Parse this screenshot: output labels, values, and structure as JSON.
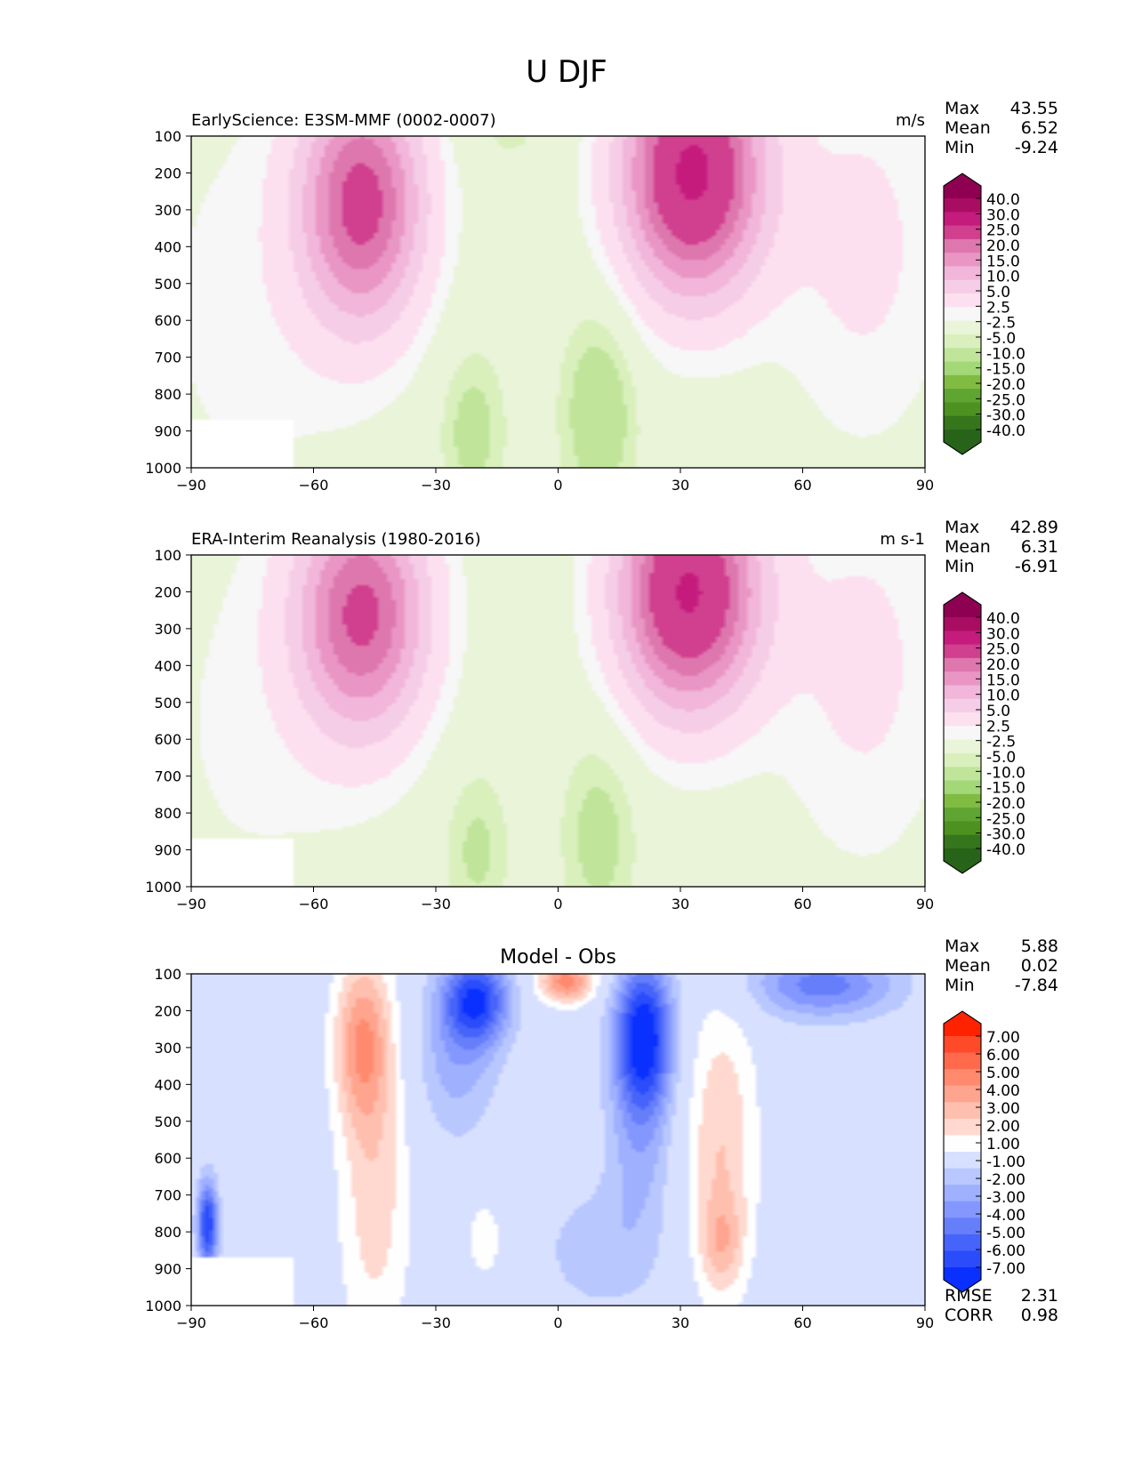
{
  "figure_title": "U DJF",
  "chart_data": [
    {
      "type": "heatmap",
      "title": "EarlyScience: E3SM-MMF (0002-0007)",
      "units": "m/s",
      "stats": [
        {
          "label": "Max",
          "value": "43.55"
        },
        {
          "label": "Mean",
          "value": "6.52"
        },
        {
          "label": "Min",
          "value": "-9.24"
        }
      ],
      "xlim": [
        -90,
        90
      ],
      "ylim": [
        1000,
        100
      ],
      "x_ticks": [
        "−90",
        "−60",
        "−30",
        "0",
        "30",
        "60",
        "90"
      ],
      "y_ticks": [
        "100",
        "200",
        "300",
        "400",
        "500",
        "600",
        "700",
        "800",
        "900",
        "1000"
      ],
      "colorbar": {
        "labels": [
          "40.0",
          "30.0",
          "25.0",
          "20.0",
          "15.0",
          "10.0",
          "5.0",
          "2.5",
          "-2.5",
          "-5.0",
          "-10.0",
          "-15.0",
          "-20.0",
          "-25.0",
          "-30.0",
          "-40.0"
        ],
        "colors": [
          "#8e0152",
          "#a80d61",
          "#c51b7d",
          "#d13f8f",
          "#de77ae",
          "#e996c4",
          "#f1b6da",
          "#f6cde7",
          "#fde0ef",
          "#f7f7f7",
          "#eaf4d9",
          "#d9f0bd",
          "#c0e59a",
          "#a3d877",
          "#7fbc41",
          "#5fa532",
          "#4d9221",
          "#35751c",
          "#276419"
        ]
      },
      "features": [
        {
          "lat": -48,
          "p": 280,
          "value": 32
        },
        {
          "lat": 33,
          "p": 200,
          "value": 43
        },
        {
          "lat": 10,
          "p": 850,
          "value": -9
        }
      ]
    },
    {
      "type": "heatmap",
      "title": "ERA-Interim Reanalysis (1980-2016)",
      "units": "m s-1",
      "stats": [
        {
          "label": "Max",
          "value": "42.89"
        },
        {
          "label": "Mean",
          "value": "6.31"
        },
        {
          "label": "Min",
          "value": "-6.91"
        }
      ],
      "xlim": [
        -90,
        90
      ],
      "ylim": [
        1000,
        100
      ],
      "x_ticks": [
        "−90",
        "−60",
        "−30",
        "0",
        "30",
        "60",
        "90"
      ],
      "y_ticks": [
        "100",
        "200",
        "300",
        "400",
        "500",
        "600",
        "700",
        "800",
        "900",
        "1000"
      ],
      "colorbar": {
        "labels": [
          "40.0",
          "30.0",
          "25.0",
          "20.0",
          "15.0",
          "10.0",
          "5.0",
          "2.5",
          "-2.5",
          "-5.0",
          "-10.0",
          "-15.0",
          "-20.0",
          "-25.0",
          "-30.0",
          "-40.0"
        ],
        "colors": [
          "#8e0152",
          "#a80d61",
          "#c51b7d",
          "#d13f8f",
          "#de77ae",
          "#e996c4",
          "#f1b6da",
          "#f6cde7",
          "#fde0ef",
          "#f7f7f7",
          "#eaf4d9",
          "#d9f0bd",
          "#c0e59a",
          "#a3d877",
          "#7fbc41",
          "#5fa532",
          "#4d9221",
          "#35751c",
          "#276419"
        ]
      },
      "features": [
        {
          "lat": -48,
          "p": 250,
          "value": 31
        },
        {
          "lat": 32,
          "p": 200,
          "value": 42
        },
        {
          "lat": 10,
          "p": 850,
          "value": -7
        }
      ]
    },
    {
      "type": "heatmap",
      "title": "Model - Obs",
      "units": "",
      "stats": [
        {
          "label": "Max",
          "value": "5.88"
        },
        {
          "label": "Mean",
          "value": "0.02"
        },
        {
          "label": "Min",
          "value": "-7.84"
        }
      ],
      "metrics": [
        {
          "label": "RMSE",
          "value": "2.31"
        },
        {
          "label": "CORR",
          "value": "0.98"
        }
      ],
      "xlim": [
        -90,
        90
      ],
      "ylim": [
        1000,
        100
      ],
      "x_ticks": [
        "−90",
        "−60",
        "−30",
        "0",
        "30",
        "60",
        "90"
      ],
      "y_ticks": [
        "100",
        "200",
        "300",
        "400",
        "500",
        "600",
        "700",
        "800",
        "900",
        "1000"
      ],
      "colorbar": {
        "labels": [
          "7.00",
          "6.00",
          "5.00",
          "4.00",
          "3.00",
          "2.00",
          "1.00",
          "-1.00",
          "-2.00",
          "-3.00",
          "-4.00",
          "-5.00",
          "-6.00",
          "-7.00"
        ],
        "colors": [
          "#ff2200",
          "#ff4a2a",
          "#ff6a4c",
          "#ff8a6d",
          "#ffa48e",
          "#ffbfae",
          "#ffd9cf",
          "#fefefe",
          "#d8e0ff",
          "#b9c7ff",
          "#9fb0ff",
          "#8397ff",
          "#667efa",
          "#4664fa",
          "#2a4cfb",
          "#0a30ff"
        ]
      },
      "features": [
        {
          "lat": -48,
          "p": 280,
          "value": 4
        },
        {
          "lat": -20,
          "p": 170,
          "value": -6
        },
        {
          "lat": 2,
          "p": 120,
          "value": 5
        },
        {
          "lat": 21,
          "p": 260,
          "value": -7
        },
        {
          "lat": 40,
          "p": 800,
          "value": 3
        }
      ]
    }
  ]
}
